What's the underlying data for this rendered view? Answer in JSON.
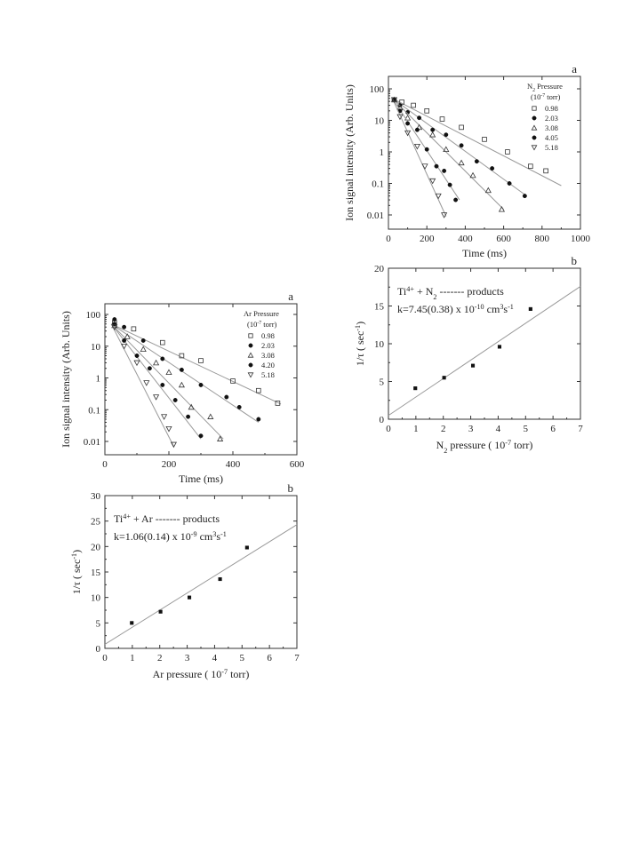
{
  "chart_data": [
    {
      "id": "n2_decay",
      "type": "scatter",
      "panel_label": "a",
      "xlabel": "Time (ms)",
      "ylabel": "Ion signal intensity (Arb. Units)",
      "xlim": [
        0,
        1000
      ],
      "ylim": [
        0.005,
        200
      ],
      "y_scale": "log",
      "xticks": [
        "0",
        "200",
        "400",
        "600",
        "800",
        "1000"
      ],
      "yticks": [
        "0.01",
        "0.1",
        "1",
        "10",
        "100"
      ],
      "legend_title_parts": [
        "N",
        "2",
        " Pressure"
      ],
      "legend_unit_parts": [
        "(10",
        "-7",
        " torr)"
      ],
      "legend_position": "top-right",
      "series": [
        {
          "name": "0.98",
          "marker": "open-square",
          "x": [
            30,
            70,
            130,
            200,
            280,
            380,
            500,
            620,
            740,
            820
          ],
          "y": [
            45,
            38,
            30,
            20,
            11,
            6,
            2.5,
            1,
            0.35,
            0.25
          ],
          "fit": [
            [
              20,
              50
            ],
            [
              900,
              0.085
            ]
          ]
        },
        {
          "name": "2.03",
          "marker": "filled-circle",
          "x": [
            30,
            60,
            100,
            160,
            230,
            300,
            380,
            460,
            540,
            630,
            710
          ],
          "y": [
            45,
            30,
            18,
            12,
            5,
            3.5,
            1.6,
            0.5,
            0.3,
            0.1,
            0.04
          ],
          "fit": [
            [
              20,
              50
            ],
            [
              720,
              0.04
            ]
          ]
        },
        {
          "name": "3.08",
          "marker": "open-triangle",
          "x": [
            30,
            60,
            100,
            160,
            230,
            300,
            380,
            440,
            520,
            590
          ],
          "y": [
            45,
            25,
            12,
            6,
            3.5,
            1.2,
            0.45,
            0.18,
            0.06,
            0.015
          ],
          "fit": [
            [
              20,
              50
            ],
            [
              600,
              0.015
            ]
          ]
        },
        {
          "name": "4.05",
          "marker": "filled-diamond",
          "x": [
            30,
            60,
            100,
            150,
            200,
            250,
            290,
            320,
            350
          ],
          "y": [
            45,
            20,
            8,
            5,
            1.2,
            0.35,
            0.25,
            0.09,
            0.03
          ],
          "fit": [
            [
              20,
              50
            ],
            [
              370,
              0.03
            ]
          ]
        },
        {
          "name": "5.18",
          "marker": "open-invtriangle",
          "x": [
            30,
            60,
            100,
            150,
            190,
            230,
            260,
            290
          ],
          "y": [
            45,
            13,
            4,
            1.5,
            0.35,
            0.12,
            0.04,
            0.01
          ],
          "fit": [
            [
              20,
              50
            ],
            [
              300,
              0.009
            ]
          ]
        }
      ]
    },
    {
      "id": "n2_rate",
      "type": "scatter",
      "panel_label": "b",
      "xlabel_parts": [
        "N",
        "2",
        " pressure ( 10",
        "-7",
        " torr)"
      ],
      "ylabel_parts": [
        "1/τ  ( sec",
        "-1",
        ")"
      ],
      "xlim": [
        0,
        7
      ],
      "ylim": [
        0,
        20
      ],
      "xticks": [
        "0",
        "1",
        "2",
        "3",
        "4",
        "5",
        "6",
        "7"
      ],
      "yticks": [
        "0",
        "5",
        "10",
        "15",
        "20"
      ],
      "annotation_line1_parts": [
        "Ti",
        "4+",
        " + N",
        "2",
        " ------- products"
      ],
      "annotation_line2_parts": [
        "k=7.45(0.38) x 10",
        "-10",
        " cm",
        "3",
        "s",
        "-1"
      ],
      "series": [
        {
          "x": [
            0.98,
            2.03,
            3.08,
            4.05,
            5.18
          ],
          "y": [
            4.1,
            5.5,
            7.1,
            9.6,
            14.6
          ],
          "fit": [
            [
              0,
              0.5
            ],
            [
              7,
              17.6
            ]
          ]
        }
      ]
    },
    {
      "id": "ar_decay",
      "type": "scatter",
      "panel_label": "a",
      "xlabel": "Time (ms)",
      "ylabel": "Ion signal intensity (Arb. Units)",
      "xlim": [
        0,
        600
      ],
      "ylim": [
        0.004,
        200
      ],
      "y_scale": "log",
      "xticks": [
        "0",
        "200",
        "400",
        "600"
      ],
      "yticks": [
        "0.01",
        "0.1",
        "1",
        "10",
        "100"
      ],
      "legend_title_parts": [
        "Ar Pressure"
      ],
      "legend_unit_parts": [
        "(10",
        "-7",
        " torr)"
      ],
      "legend_position": "top-right",
      "series": [
        {
          "name": "0.98",
          "marker": "open-square",
          "x": [
            30,
            90,
            180,
            240,
            300,
            400,
            480,
            540
          ],
          "y": [
            55,
            35,
            13,
            5,
            3.5,
            0.8,
            0.4,
            0.16
          ],
          "fit": [
            [
              20,
              50
            ],
            [
              550,
              0.15
            ]
          ]
        },
        {
          "name": "2.03",
          "marker": "filled-circle",
          "x": [
            30,
            60,
            120,
            180,
            240,
            300,
            380,
            420,
            480
          ],
          "y": [
            70,
            40,
            15,
            4,
            1.8,
            0.6,
            0.25,
            0.12,
            0.05
          ],
          "fit": [
            [
              20,
              50
            ],
            [
              480,
              0.04
            ]
          ]
        },
        {
          "name": "3.08",
          "marker": "open-triangle",
          "x": [
            30,
            70,
            120,
            160,
            200,
            240,
            270,
            330,
            360
          ],
          "y": [
            45,
            20,
            8,
            3,
            1.5,
            0.6,
            0.12,
            0.06,
            0.012
          ],
          "fit": [
            [
              20,
              50
            ],
            [
              370,
              0.012
            ]
          ]
        },
        {
          "name": "4.20",
          "marker": "filled-diamond",
          "x": [
            30,
            60,
            100,
            140,
            180,
            220,
            260,
            300
          ],
          "y": [
            50,
            15,
            5,
            2,
            0.6,
            0.2,
            0.06,
            0.015
          ],
          "fit": [
            [
              20,
              50
            ],
            [
              300,
              0.012
            ]
          ]
        },
        {
          "name": "5.18",
          "marker": "open-invtriangle",
          "x": [
            30,
            60,
            100,
            130,
            160,
            185,
            200,
            215
          ],
          "y": [
            40,
            10,
            3,
            0.7,
            0.25,
            0.06,
            0.025,
            0.008
          ],
          "fit": [
            [
              20,
              50
            ],
            [
              215,
              0.007
            ]
          ]
        }
      ]
    },
    {
      "id": "ar_rate",
      "type": "scatter",
      "panel_label": "b",
      "xlabel_parts": [
        "Ar pressure ( 10",
        "-7",
        " torr)"
      ],
      "ylabel_parts": [
        "1/τ  ( sec",
        "-1",
        ")"
      ],
      "xlim": [
        0,
        7
      ],
      "ylim": [
        0,
        30
      ],
      "xticks": [
        "0",
        "1",
        "2",
        "3",
        "4",
        "5",
        "6",
        "7"
      ],
      "yticks": [
        "0",
        "5",
        "10",
        "15",
        "20",
        "25",
        "30"
      ],
      "annotation_line1_parts": [
        "Ti",
        "4+",
        " + Ar ------- products"
      ],
      "annotation_line2_parts": [
        "k=1.06(0.14) x 10",
        "-9",
        " cm",
        "3",
        "s",
        "-1"
      ],
      "series": [
        {
          "x": [
            0.98,
            2.03,
            3.08,
            4.2,
            5.18
          ],
          "y": [
            5.0,
            7.2,
            10.0,
            13.6,
            19.8
          ],
          "fit": [
            [
              0,
              0.8
            ],
            [
              7,
              24.3
            ]
          ]
        }
      ]
    }
  ]
}
